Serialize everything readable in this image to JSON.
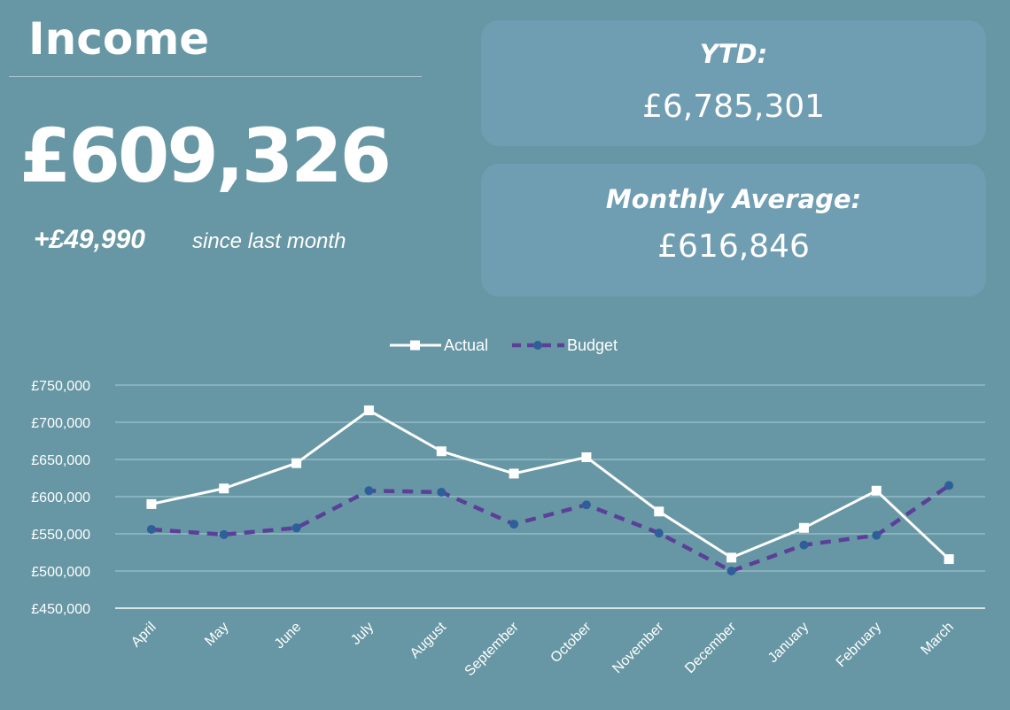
{
  "header": {
    "title": "Income",
    "current_value": "£609,326",
    "change_value": "+£49,990",
    "change_label": "since last month"
  },
  "cards": {
    "ytd": {
      "label": "YTD:",
      "value": "£6,785,301"
    },
    "monthly_average": {
      "label": "Monthly Average:",
      "value": "£616,846"
    }
  },
  "colors": {
    "background": "#6797a4",
    "card": "#6f9db2",
    "actual": "#ffffff",
    "budget": "#5b3f99",
    "budget_marker": "#2f5f9a",
    "grid": "#a9cdd6"
  },
  "chart_data": {
    "type": "line",
    "categories": [
      "April",
      "May",
      "June",
      "July",
      "August",
      "September",
      "October",
      "November",
      "December",
      "January",
      "February",
      "March"
    ],
    "series": [
      {
        "name": "Actual",
        "values": [
          590000,
          611000,
          645000,
          716000,
          661000,
          631000,
          653000,
          580000,
          518000,
          558000,
          608000,
          516000
        ]
      },
      {
        "name": "Budget",
        "values": [
          556000,
          549000,
          558000,
          608000,
          606000,
          563000,
          589000,
          551000,
          500000,
          535000,
          548000,
          615000
        ]
      }
    ],
    "ylim": [
      450000,
      750000
    ],
    "ytick_step": 50000,
    "ytick_labels": [
      "£450,000",
      "£500,000",
      "£550,000",
      "£600,000",
      "£650,000",
      "£700,000",
      "£750,000"
    ],
    "legend": "top-center",
    "grid": true,
    "title": "",
    "xlabel": "",
    "ylabel": ""
  }
}
